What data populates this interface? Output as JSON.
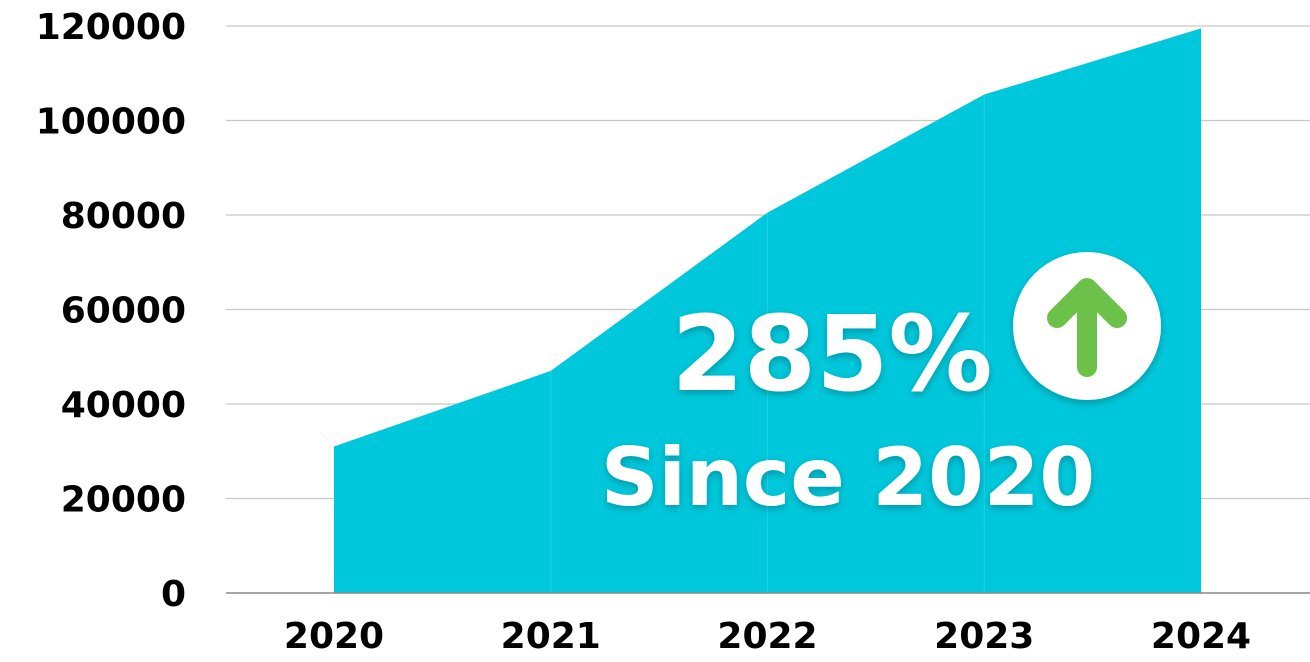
{
  "chart_data": {
    "type": "area",
    "categories": [
      "2020",
      "2021",
      "2022",
      "2023",
      "2024"
    ],
    "values": [
      31000,
      47000,
      80500,
      105500,
      119500
    ],
    "ylim": [
      0,
      120000
    ],
    "yticks": [
      "0",
      "20000",
      "40000",
      "60000",
      "80000",
      "100000",
      "120000"
    ],
    "grid": true,
    "legend": "none",
    "colors": {
      "area": "#00C8DC",
      "grid": "#C8C8C8",
      "axis": "#888888",
      "badge_circle": "#FFFFFF",
      "arrow": "#6CC24A"
    }
  },
  "callout": {
    "percent": "285%",
    "subtitle": "Since 2020",
    "icon": "arrow-up-icon"
  }
}
